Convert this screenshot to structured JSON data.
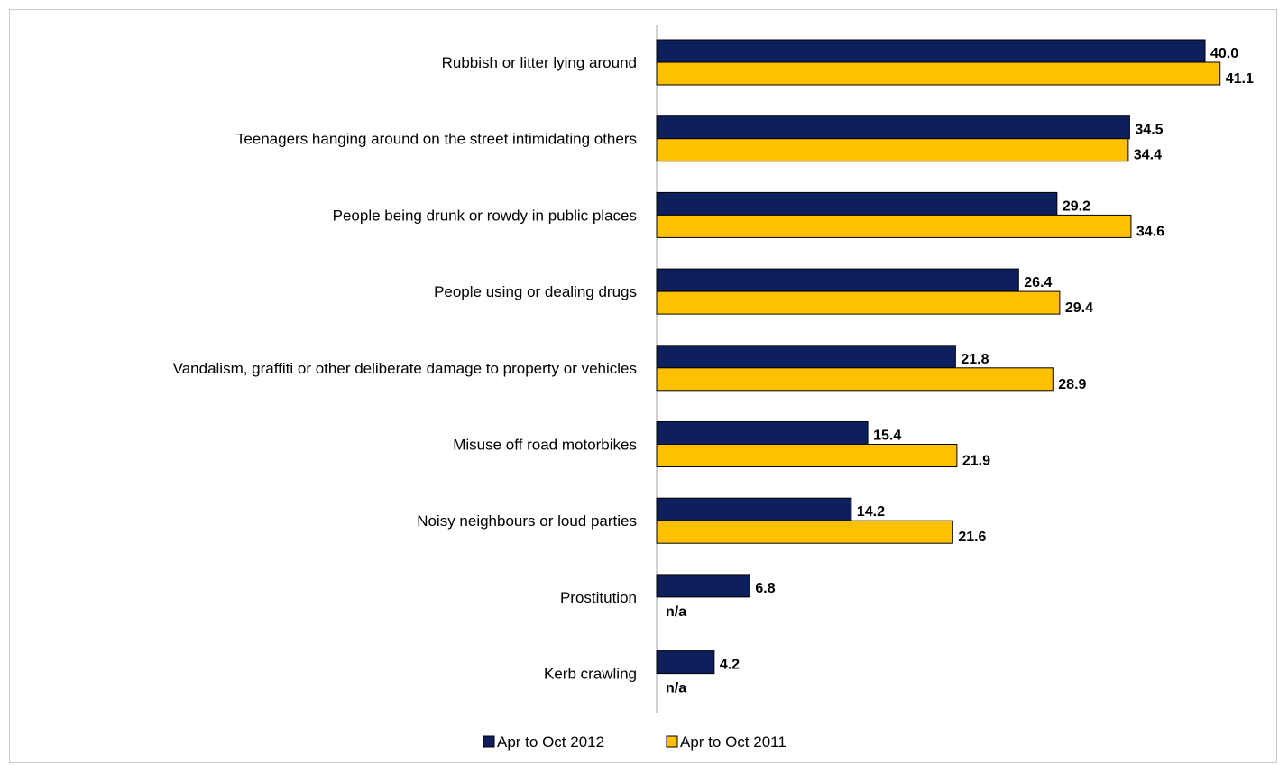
{
  "chart_data": {
    "type": "bar",
    "orientation": "horizontal",
    "categories": [
      "Rubbish or litter lying around",
      "Teenagers hanging around on the street intimidating others",
      "People being drunk or rowdy in public places",
      "People using or dealing drugs",
      "Vandalism, graffiti or other deliberate damage to property or vehicles",
      "Misuse off road motorbikes",
      "Noisy neighbours or loud parties",
      "Prostitution",
      "Kerb crawling"
    ],
    "series": [
      {
        "name": "Apr to Oct 2012",
        "color": "#0d1f5c",
        "values": [
          40.0,
          34.5,
          29.2,
          26.4,
          21.8,
          15.4,
          14.2,
          6.8,
          4.2
        ],
        "labels": [
          "40.0",
          "34.5",
          "29.2",
          "26.4",
          "21.8",
          "15.4",
          "14.2",
          "6.8",
          "4.2"
        ]
      },
      {
        "name": "Apr to Oct 2011",
        "color": "#ffc000",
        "values": [
          41.1,
          34.4,
          34.6,
          29.4,
          28.9,
          21.9,
          21.6,
          null,
          null
        ],
        "labels": [
          "41.1",
          "34.4",
          "34.6",
          "29.4",
          "28.9",
          "21.9",
          "21.6",
          "n/a",
          "n/a"
        ]
      }
    ],
    "xlim": [
      0,
      45
    ],
    "grid": false,
    "legend_position": "bottom"
  }
}
